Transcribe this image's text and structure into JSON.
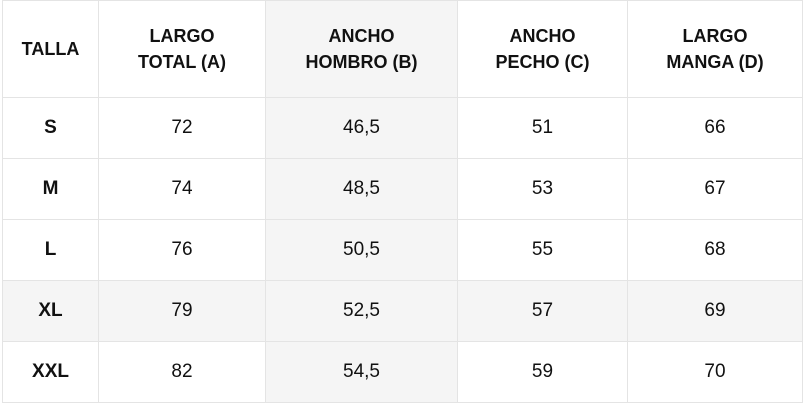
{
  "table": {
    "headers": [
      "TALLA",
      "LARGO TOTAL (A)",
      "ANCHO HOMBRO (B)",
      "ANCHO PECHO (C)",
      "LARGO MANGA (D)"
    ],
    "rows": [
      [
        "S",
        "72",
        "46,5",
        "51",
        "66"
      ],
      [
        "M",
        "74",
        "48,5",
        "53",
        "67"
      ],
      [
        "L",
        "76",
        "50,5",
        "55",
        "68"
      ],
      [
        "XL",
        "79",
        "52,5",
        "57",
        "69"
      ],
      [
        "XXL",
        "82",
        "54,5",
        "59",
        "70"
      ]
    ]
  }
}
